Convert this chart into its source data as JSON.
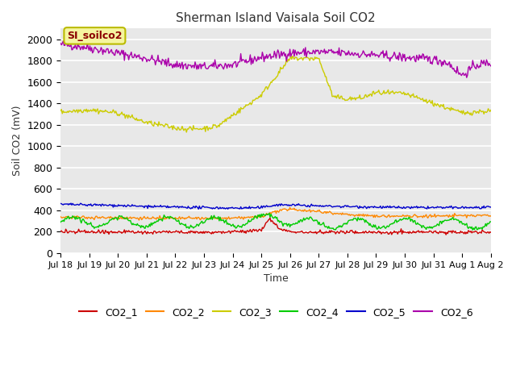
{
  "title": "Sherman Island Vaisala Soil CO2",
  "ylabel": "Soil CO2 (mV)",
  "xlabel": "Time",
  "annotation": "SI_soilco2",
  "ylim": [
    0,
    2100
  ],
  "yticks": [
    0,
    200,
    400,
    600,
    800,
    1000,
    1200,
    1400,
    1600,
    1800,
    2000
  ],
  "colors": {
    "CO2_1": "#cc0000",
    "CO2_2": "#ff8800",
    "CO2_3": "#cccc00",
    "CO2_4": "#00cc00",
    "CO2_5": "#0000cc",
    "CO2_6": "#aa00aa"
  },
  "bg_color": "#ffffff",
  "plot_bg_color": "#e8e8e8",
  "n_points": 500,
  "x_start": 0,
  "x_end": 15,
  "xtick_positions": [
    0,
    1,
    2,
    3,
    4,
    5,
    6,
    7,
    8,
    9,
    10,
    11,
    12,
    13,
    14,
    15
  ],
  "xtick_labels": [
    "Jul 18",
    "Jul 19",
    "Jul 20",
    "Jul 21",
    "Jul 22",
    "Jul 23",
    "Jul 24",
    "Jul 25",
    "Jul 26",
    "Jul 27",
    "Jul 28",
    "Jul 29",
    "Jul 30",
    "Jul 31",
    "Aug 1",
    "Aug 2"
  ]
}
